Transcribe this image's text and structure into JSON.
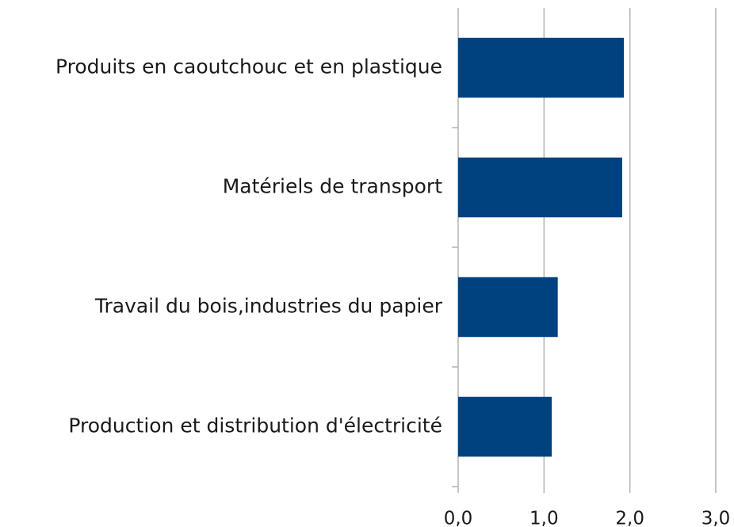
{
  "chart_data": {
    "type": "bar",
    "orientation": "horizontal",
    "categories": [
      "Produits en caoutchouc et en plastique",
      "Matériels de transport",
      "Travail du bois,industries du papier",
      "Production et distribution d'électricité"
    ],
    "values": [
      1.93,
      1.91,
      1.16,
      1.09
    ],
    "color": "#00417f",
    "xlim": [
      0,
      3
    ],
    "xticks": [
      {
        "value": 0,
        "label": "0,0"
      },
      {
        "value": 1,
        "label": "1,0"
      },
      {
        "value": 2,
        "label": "2,0"
      },
      {
        "value": 3,
        "label": "3,0"
      }
    ],
    "grid": true
  }
}
